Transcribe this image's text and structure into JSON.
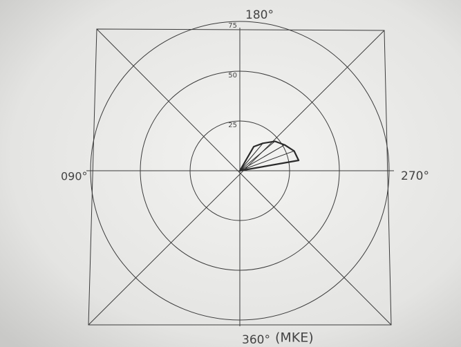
{
  "chart_data": {
    "type": "polar",
    "direction_labels": {
      "top": "180°",
      "left": "090°",
      "right": "270°",
      "bottom": "360°"
    },
    "station": "(MKE)",
    "rlim": [
      0,
      75
    ],
    "rticks": [
      25,
      50,
      75
    ],
    "x": [
      210,
      220,
      230,
      240,
      250,
      260
    ],
    "values": [
      14,
      18,
      23,
      26,
      29,
      30
    ],
    "color": "#2a2a2a"
  }
}
